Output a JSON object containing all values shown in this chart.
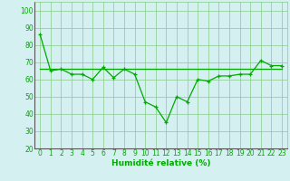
{
  "hours": [
    0,
    1,
    2,
    3,
    4,
    5,
    6,
    7,
    8,
    9,
    10,
    11,
    12,
    13,
    14,
    15,
    16,
    17,
    18,
    19,
    20,
    21,
    22,
    23
  ],
  "humidity": [
    86,
    65,
    66,
    63,
    63,
    60,
    67,
    61,
    66,
    63,
    47,
    44,
    35,
    50,
    47,
    60,
    59,
    62,
    62,
    63,
    63,
    71,
    68,
    68
  ],
  "avg_line": [
    66,
    66,
    66,
    66,
    66,
    66,
    66,
    66,
    66,
    66,
    66,
    66,
    66,
    66,
    66,
    66,
    66,
    66,
    66,
    66,
    66,
    66,
    66,
    66
  ],
  "line_color": "#00aa00",
  "avg_color": "#00aa00",
  "bg_color": "#d4f0f0",
  "grid_color": "#88cc88",
  "xlabel": "Humidité relative (%)",
  "ylim": [
    20,
    105
  ],
  "xlim": [
    -0.5,
    23.5
  ],
  "yticks": [
    20,
    30,
    40,
    50,
    60,
    70,
    80,
    90,
    100
  ],
  "xticks": [
    0,
    1,
    2,
    3,
    4,
    5,
    6,
    7,
    8,
    9,
    10,
    11,
    12,
    13,
    14,
    15,
    16,
    17,
    18,
    19,
    20,
    21,
    22,
    23
  ],
  "tick_fontsize": 5.5,
  "xlabel_fontsize": 6.5,
  "marker": "+",
  "marker_size": 3.5,
  "line_width": 0.9
}
